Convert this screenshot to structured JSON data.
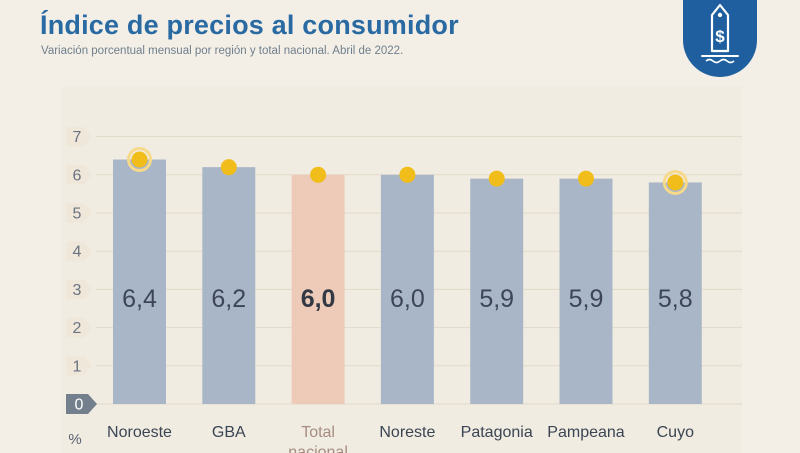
{
  "title": "Índice de precios al consumidor",
  "subtitle": "Variación porcentual mensual por región y total nacional. Abril de 2022.",
  "logo_icon": "price-tag-dollar-icon",
  "colors": {
    "title": "#2a6aa3",
    "bar": "#a9b6c7",
    "highlight_bar": "#edcbb8",
    "marker": "#f1bd1a",
    "marker_ring": "#f6d98a",
    "value_label": "#3c4656",
    "axis_badge": "#747f8e",
    "logo": "#1f5fa0"
  },
  "chart_data": {
    "type": "bar",
    "title": "Índice de precios al consumidor",
    "subtitle": "Variación porcentual mensual por región y total nacional. Abril de 2022.",
    "ylabel": "%",
    "xlabel": "",
    "ylim": [
      0,
      7
    ],
    "yticks": [
      "0",
      "1",
      "2",
      "3",
      "4",
      "5",
      "6",
      "7"
    ],
    "grid": true,
    "categories": [
      "Noroeste",
      "GBA",
      "Total nacional",
      "Noreste",
      "Patagonia",
      "Pampeana",
      "Cuyo"
    ],
    "values": [
      6.4,
      6.2,
      6.0,
      6.0,
      5.9,
      5.9,
      5.8
    ],
    "value_labels": [
      "6,4",
      "6,2",
      "6,0",
      "6,0",
      "5,9",
      "5,9",
      "5,8"
    ],
    "highlight_index": 2,
    "ringed_markers": [
      0,
      6
    ]
  }
}
